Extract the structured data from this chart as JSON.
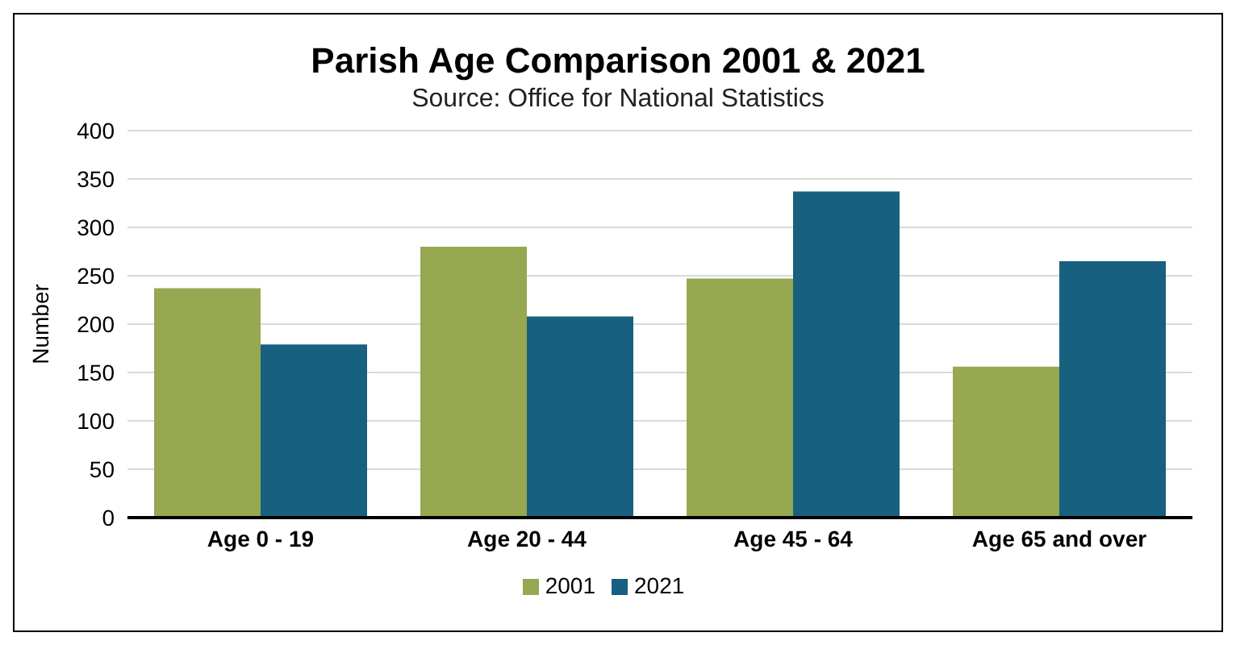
{
  "chart_data": {
    "type": "bar",
    "title": "Parish Age Comparison 2001 & 2021",
    "subtitle": "Source: Office for National Statistics",
    "ylabel": "Number",
    "categories": [
      "Age 0 - 19",
      "Age 20 - 44",
      "Age 45 - 64",
      "Age 65 and over"
    ],
    "series": [
      {
        "name": "2001",
        "color": "#96a850",
        "values": [
          237,
          280,
          247,
          156
        ]
      },
      {
        "name": "2021",
        "color": "#17607f",
        "values": [
          179,
          208,
          337,
          265
        ]
      }
    ],
    "ylim": [
      0,
      400
    ],
    "yticks": [
      0,
      50,
      100,
      150,
      200,
      250,
      300,
      350,
      400
    ],
    "grid": "y",
    "legend": "bottom"
  }
}
